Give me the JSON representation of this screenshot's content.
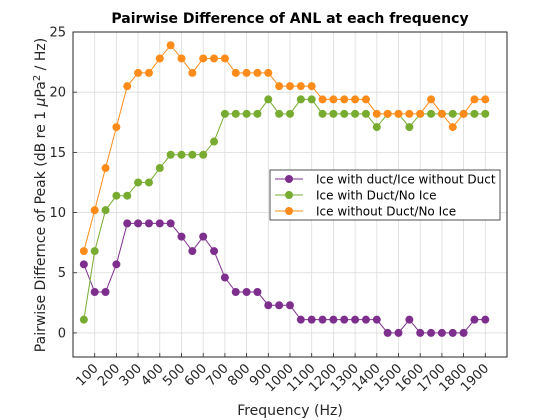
{
  "chart_data": {
    "type": "line",
    "title": "Pairwise Difference of ANL at each frequency",
    "xlabel": "Frequency (Hz)",
    "ylabel_prefix": "Pairwise Differnce of Peak (dB re 1 ",
    "ylabel_mu": "μ",
    "ylabel_pa": "Pa",
    "ylabel_sup": "2",
    "ylabel_suffix": " / Hz)",
    "xlim": [
      0,
      2000
    ],
    "ylim": [
      -2,
      25
    ],
    "x_ticks": [
      100,
      200,
      300,
      400,
      500,
      600,
      700,
      800,
      900,
      1000,
      1100,
      1200,
      1300,
      1400,
      1500,
      1600,
      1700,
      1800,
      1900
    ],
    "x_tick_labels": [
      "100",
      "200",
      "300",
      "400",
      "500",
      "600",
      "700",
      "800",
      "900",
      "1000",
      "1100",
      "1200",
      "1300",
      "1400",
      "1500",
      "1600",
      "1700",
      "1800",
      "1900"
    ],
    "y_ticks": [
      0,
      5,
      10,
      15,
      20,
      25
    ],
    "y_tick_labels": [
      "0",
      "5",
      "10",
      "15",
      "20",
      "25"
    ],
    "grid": true,
    "legend_position": "right",
    "x": [
      50,
      100,
      150,
      200,
      250,
      300,
      350,
      400,
      450,
      500,
      550,
      600,
      650,
      700,
      750,
      800,
      850,
      900,
      950,
      1000,
      1050,
      1100,
      1150,
      1200,
      1250,
      1300,
      1350,
      1400,
      1450,
      1500,
      1550,
      1600,
      1650,
      1700,
      1750,
      1800,
      1850,
      1900
    ],
    "series": [
      {
        "name": "Ice with duct/Ice without Duct",
        "color": "#7e2f8e",
        "values": [
          5.7,
          3.4,
          3.4,
          5.7,
          9.1,
          9.1,
          9.1,
          9.1,
          9.1,
          8.0,
          6.8,
          8.0,
          6.8,
          4.6,
          3.4,
          3.4,
          3.4,
          2.3,
          2.3,
          2.3,
          1.1,
          1.1,
          1.1,
          1.1,
          1.1,
          1.1,
          1.1,
          1.1,
          0.0,
          0.0,
          1.1,
          0.0,
          0.0,
          0.0,
          0.0,
          0.0,
          1.1,
          1.1
        ]
      },
      {
        "name": "Ice with Duct/No Ice",
        "color": "#77ac30",
        "values": [
          1.1,
          6.8,
          10.2,
          11.4,
          11.4,
          12.5,
          12.5,
          13.7,
          14.8,
          14.8,
          14.8,
          14.8,
          15.9,
          18.2,
          18.2,
          18.2,
          18.2,
          19.4,
          18.2,
          18.2,
          19.4,
          19.4,
          18.2,
          18.2,
          18.2,
          18.2,
          18.2,
          17.1,
          18.2,
          18.2,
          17.1,
          18.2,
          18.2,
          18.2,
          18.2,
          18.2,
          18.2,
          18.2
        ]
      },
      {
        "name": "Ice without Duct/No Ice",
        "color": "#ff8c1a",
        "values": [
          6.8,
          10.2,
          13.7,
          17.1,
          20.5,
          21.6,
          21.6,
          22.8,
          23.9,
          22.8,
          21.6,
          22.8,
          22.8,
          22.8,
          21.6,
          21.6,
          21.6,
          21.6,
          20.5,
          20.5,
          20.5,
          20.5,
          19.4,
          19.4,
          19.4,
          19.4,
          19.4,
          18.2,
          18.2,
          18.2,
          18.2,
          18.2,
          19.4,
          18.2,
          17.1,
          18.2,
          19.4,
          19.4
        ]
      }
    ]
  }
}
